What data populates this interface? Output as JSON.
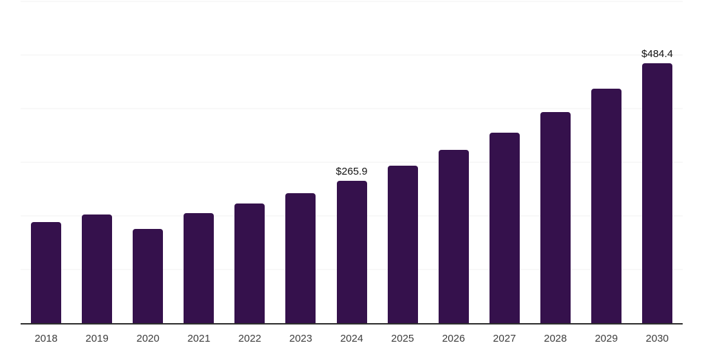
{
  "chart_data": {
    "type": "bar",
    "title": "",
    "xlabel": "",
    "ylabel": "",
    "categories": [
      "2018",
      "2019",
      "2020",
      "2021",
      "2022",
      "2023",
      "2024",
      "2025",
      "2026",
      "2027",
      "2028",
      "2029",
      "2030"
    ],
    "values": [
      189,
      203,
      176,
      205,
      223,
      242,
      265.9,
      293,
      323,
      355,
      394,
      437,
      484.4
    ],
    "data_labels": [
      "",
      "",
      "",
      "",
      "",
      "",
      "$265.9",
      "",
      "",
      "",
      "",
      "",
      "$484.4"
    ],
    "ylim": [
      0,
      600
    ],
    "gridline_values": [
      100,
      200,
      300,
      400,
      500,
      600
    ],
    "grid": "horizontal",
    "legend": "none",
    "y_axis_tick_labels": "none",
    "colors": {
      "bar": "#35114C",
      "grid": "#f0f0f0",
      "axis": "#2e2e2e",
      "tick_label": "#3d3d3d",
      "value_label": "#111111",
      "background": "#ffffff"
    }
  }
}
